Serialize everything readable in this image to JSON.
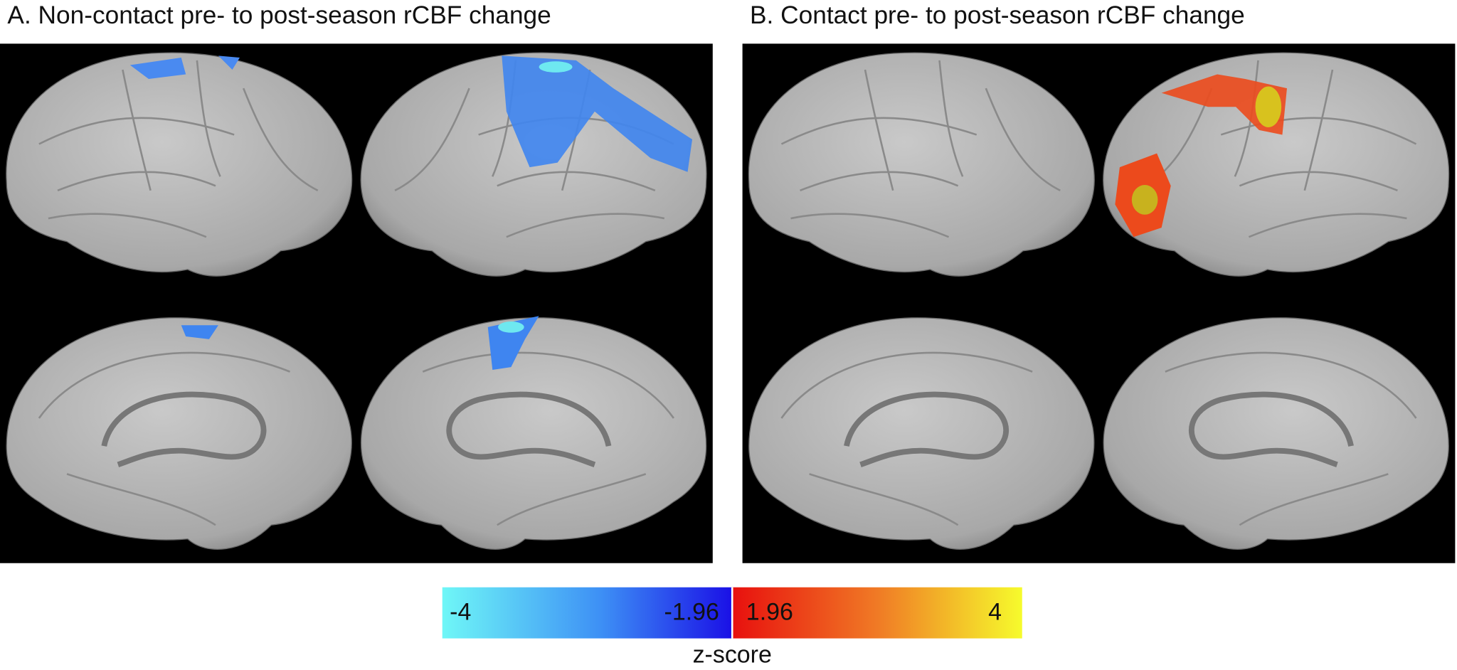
{
  "panels": [
    {
      "title": "A. Non-contact pre- to post-season rCBF change"
    },
    {
      "title": "B. Contact pre- to post-season rCBF change"
    }
  ],
  "colorbar": {
    "label": "z-score",
    "negative_ticks": [
      -4,
      -1.96
    ],
    "positive_ticks": [
      1.96,
      4
    ]
  }
}
